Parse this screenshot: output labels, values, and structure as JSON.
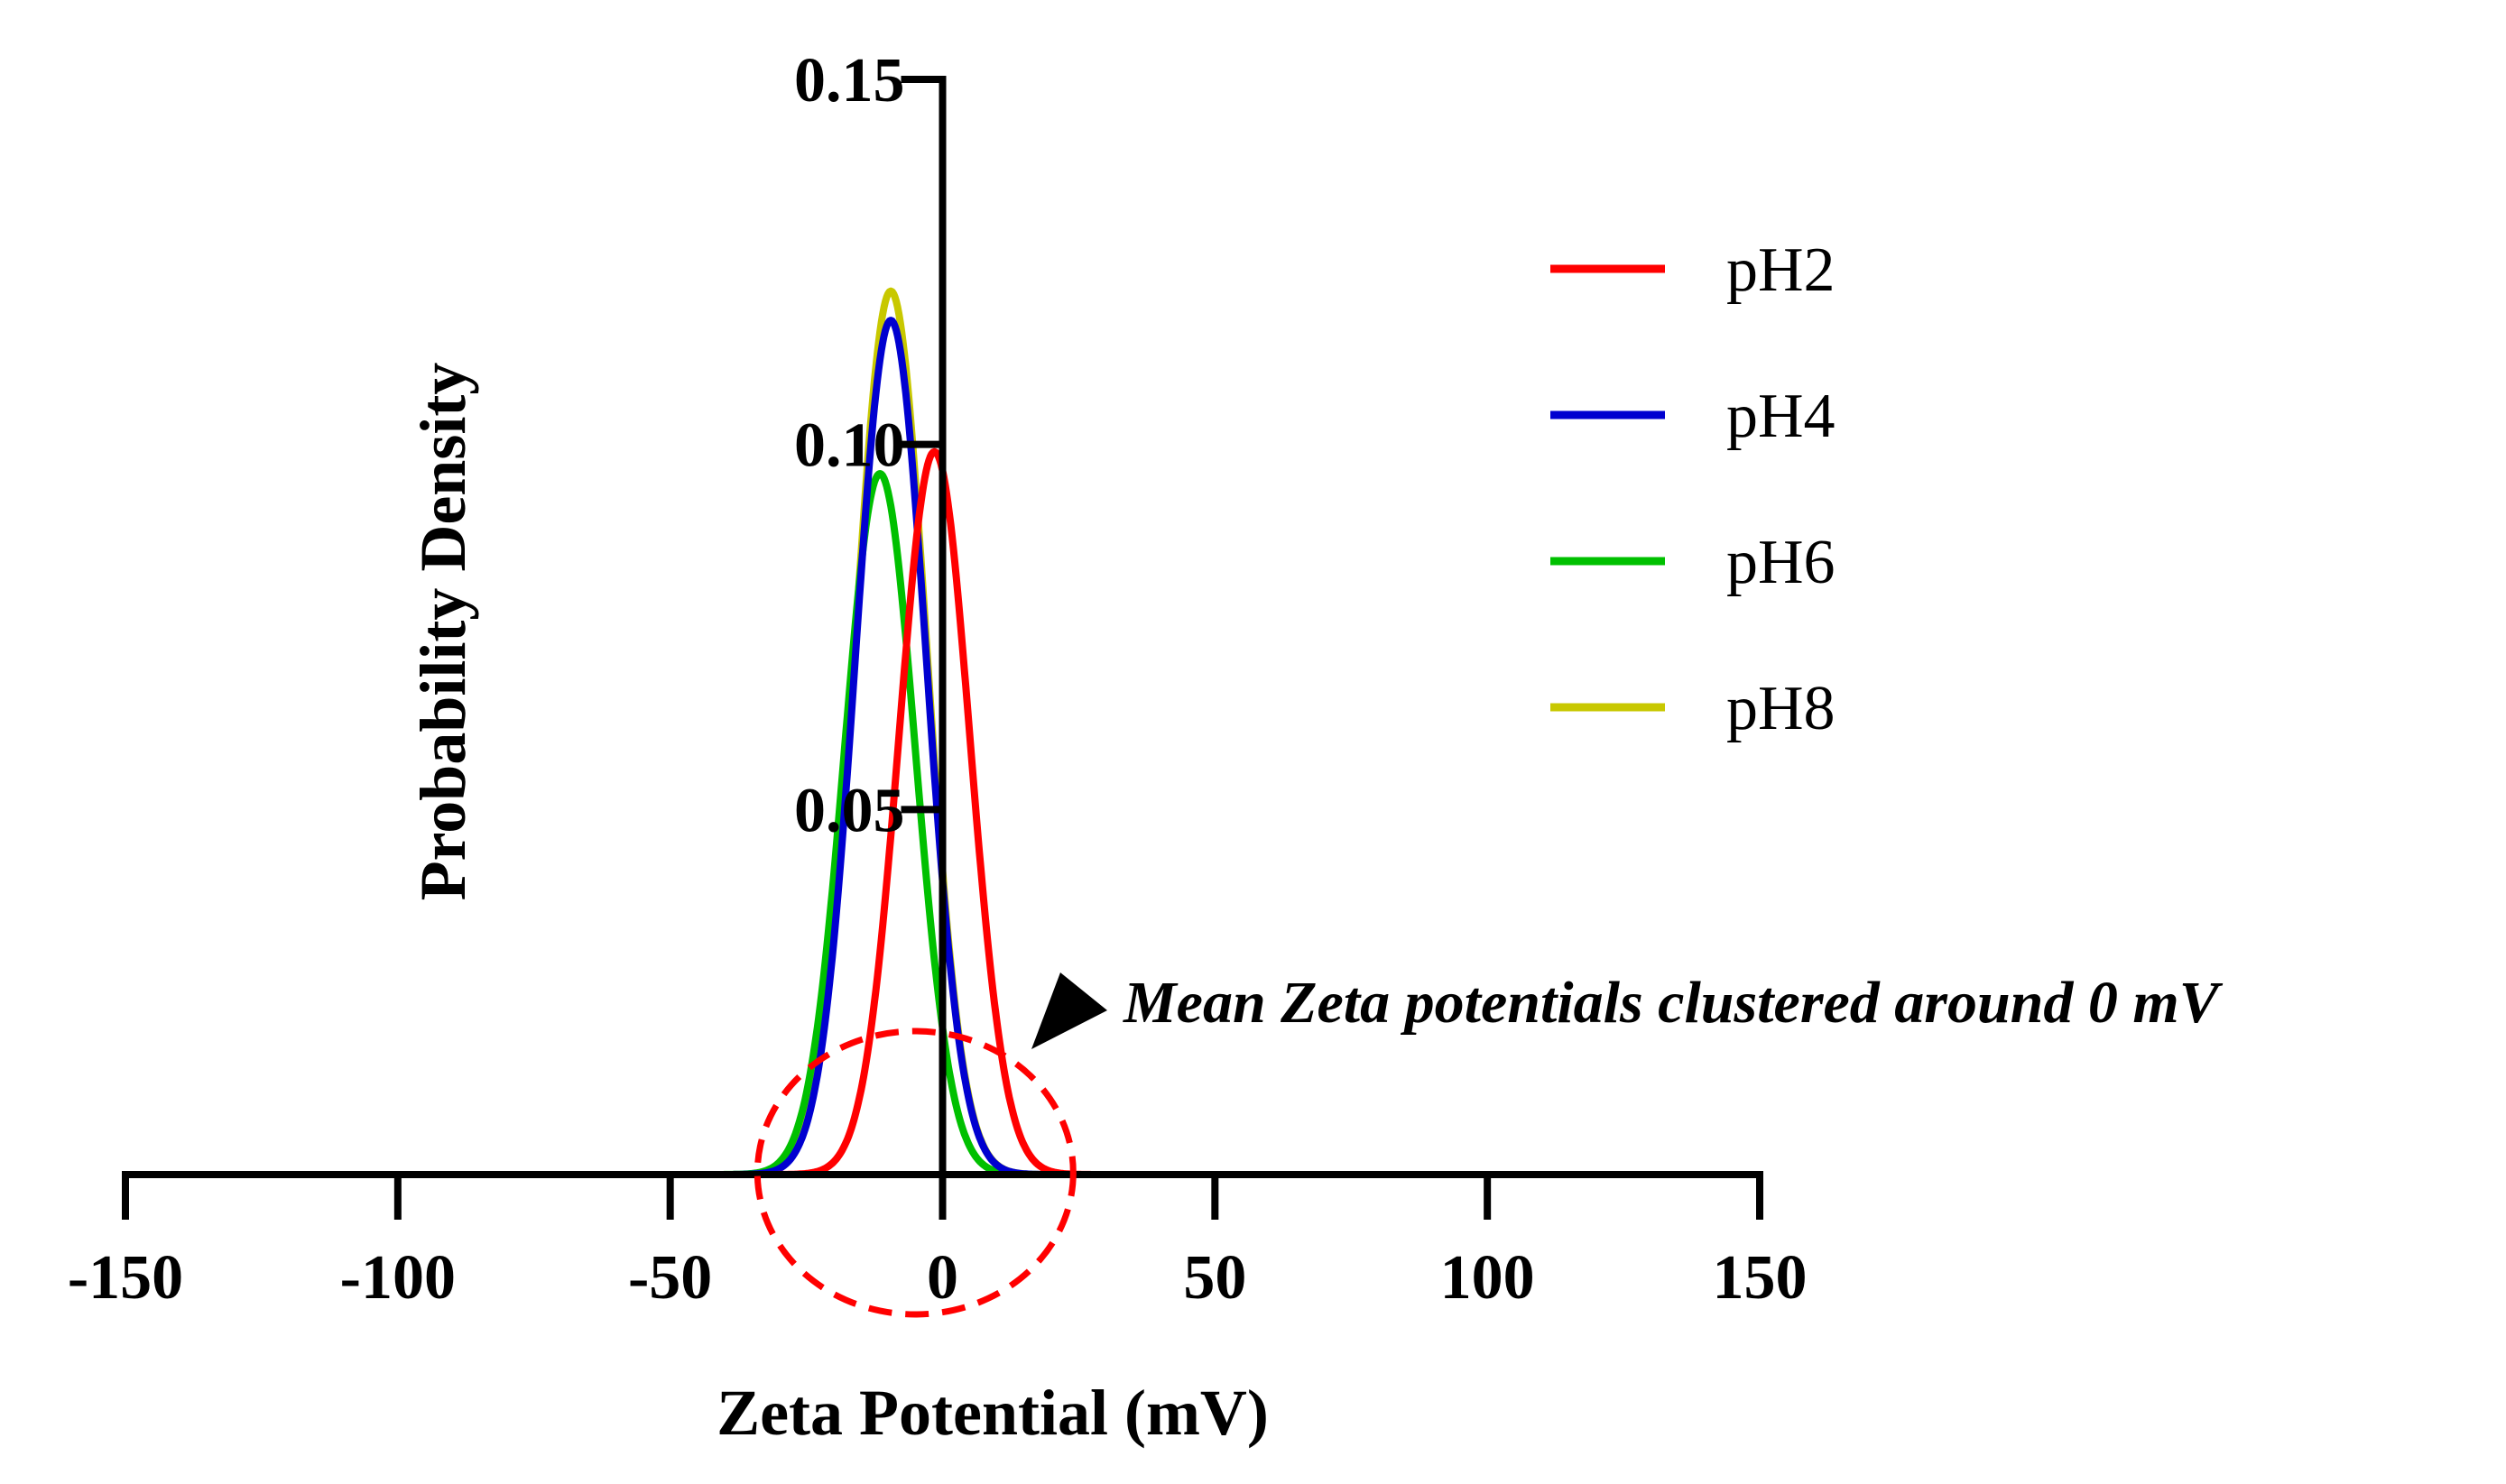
{
  "chart_data": {
    "type": "line",
    "title": "",
    "xlabel": "Zeta Potential (mV)",
    "ylabel": "Probability Density",
    "xlim": [
      -150,
      150
    ],
    "ylim": [
      0,
      0.15
    ],
    "x_ticks": [
      -150,
      -100,
      -50,
      0,
      50,
      100,
      150
    ],
    "x_tick_labels": [
      "-150",
      "-100",
      "-50",
      "0",
      "50",
      "100",
      "150"
    ],
    "y_ticks": [
      0.05,
      0.1,
      0.15
    ],
    "y_tick_labels": [
      "0.05",
      "0.10",
      "0.15"
    ],
    "grid": false,
    "legend_position": "top-right",
    "x_range": [
      -100,
      100
    ],
    "series": [
      {
        "name": "pH8",
        "color": "#c8c800",
        "mean": -9.5,
        "peak": 0.121
      },
      {
        "name": "pH6",
        "color": "#00c000",
        "mean": -11.5,
        "peak": 0.096
      },
      {
        "name": "pH4",
        "color": "#0000d0",
        "mean": -9.5,
        "peak": 0.117
      },
      {
        "name": "pH2",
        "color": "#ff0000",
        "mean": -1.5,
        "peak": 0.099
      }
    ],
    "legend_order": [
      "pH2",
      "pH4",
      "pH6",
      "pH8"
    ],
    "annotation": {
      "text": "Mean Zeta potentials clustered around 0 mV",
      "circle_center_x": -5,
      "circle_color": "#ff0000"
    }
  }
}
